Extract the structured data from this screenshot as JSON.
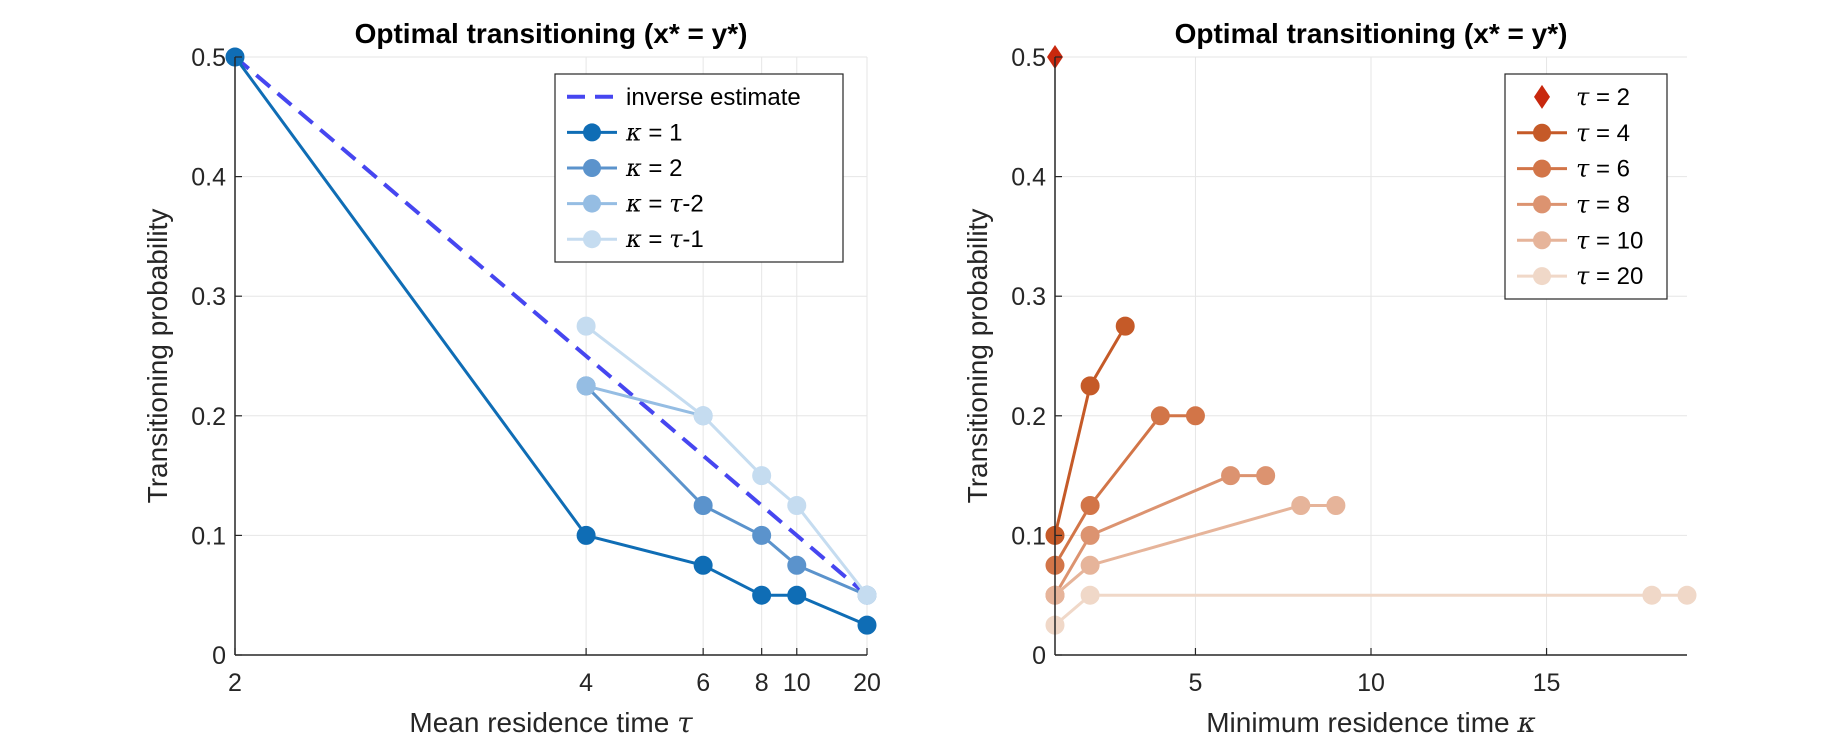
{
  "chart_data": [
    {
      "type": "line",
      "title": "Optimal transitioning (x* = y*)",
      "xlabel": "Mean residence time τ",
      "xlabel_text": "Mean residence time ",
      "xlabel_symbol": "τ",
      "ylabel": "Transitioning probability",
      "xlim": [
        2,
        20
      ],
      "ylim": [
        0,
        0.5
      ],
      "x_scale": "reciprocal",
      "xticks": [
        2,
        4,
        6,
        8,
        10,
        20
      ],
      "xtick_labels": [
        "2",
        "4",
        "6",
        "8",
        "10",
        "20"
      ],
      "yticks": [
        0,
        0.1,
        0.2,
        0.3,
        0.4,
        0.5
      ],
      "ytick_labels": [
        "0",
        "0.1",
        "0.2",
        "0.3",
        "0.4",
        "0.5"
      ],
      "grid": true,
      "legend_position": "top-right",
      "series": [
        {
          "name": "inverse estimate",
          "legend_prefix": "",
          "legend_symbol": "",
          "legend_suffix": "inverse estimate",
          "style": "dashed",
          "marker": "none",
          "color": "#4646f0",
          "x": [
            2,
            4,
            6,
            8,
            10,
            20
          ],
          "y": [
            0.5,
            0.25,
            0.1667,
            0.125,
            0.1,
            0.05
          ]
        },
        {
          "name": "κ = 1",
          "legend_prefix": "",
          "legend_symbol": "κ",
          "legend_suffix": " = 1",
          "style": "solid",
          "marker": "circle",
          "color": "#0f6db5",
          "x": [
            2,
            4,
            6,
            8,
            10,
            20
          ],
          "y": [
            0.5,
            0.1,
            0.075,
            0.05,
            0.05,
            0.025
          ]
        },
        {
          "name": "κ = 2",
          "legend_prefix": "",
          "legend_symbol": "κ",
          "legend_suffix": " = 2",
          "style": "solid",
          "marker": "circle",
          "color": "#5b93cc",
          "x": [
            4,
            6,
            8,
            10,
            20
          ],
          "y": [
            0.225,
            0.125,
            0.1,
            0.075,
            0.05
          ]
        },
        {
          "name": "κ = τ-2",
          "legend_prefix": "",
          "legend_symbol": "κ",
          "legend_suffix": " = τ-2",
          "style": "solid",
          "marker": "circle",
          "color": "#95bde3",
          "x": [
            4,
            6
          ],
          "y": [
            0.225,
            0.2
          ]
        },
        {
          "name": "κ = τ-1",
          "legend_prefix": "",
          "legend_symbol": "κ",
          "legend_suffix": " = τ-1",
          "style": "solid",
          "marker": "circle",
          "color": "#c5dcf0",
          "x": [
            4,
            6,
            8,
            10,
            20
          ],
          "y": [
            0.275,
            0.2,
            0.15,
            0.125,
            0.05
          ]
        }
      ]
    },
    {
      "type": "line",
      "title": "Optimal transitioning (x* = y*)",
      "xlabel": "Minimum residence time κ",
      "xlabel_text": "Minimum residence time ",
      "xlabel_symbol": "κ",
      "ylabel": "Transitioning probability",
      "xlim": [
        1,
        19
      ],
      "ylim": [
        0,
        0.5
      ],
      "x_scale": "linear",
      "xticks": [
        5,
        10,
        15
      ],
      "xtick_labels": [
        "5",
        "10",
        "15"
      ],
      "yticks": [
        0,
        0.1,
        0.2,
        0.3,
        0.4,
        0.5
      ],
      "ytick_labels": [
        "0",
        "0.1",
        "0.2",
        "0.3",
        "0.4",
        "0.5"
      ],
      "grid": true,
      "legend_position": "top-right",
      "series": [
        {
          "name": "τ = 2",
          "legend_symbol": "τ",
          "legend_suffix": " = 2",
          "style": "none",
          "marker": "diamond",
          "color": "#c8280e",
          "x": [
            1
          ],
          "y": [
            0.5
          ]
        },
        {
          "name": "τ = 4",
          "legend_symbol": "τ",
          "legend_suffix": " = 4",
          "style": "solid",
          "marker": "circle",
          "color": "#c55a28",
          "x": [
            1,
            2,
            3
          ],
          "y": [
            0.1,
            0.225,
            0.275
          ]
        },
        {
          "name": "τ = 6",
          "legend_symbol": "τ",
          "legend_suffix": " = 6",
          "style": "solid",
          "marker": "circle",
          "color": "#d27548",
          "x": [
            1,
            2,
            4,
            5
          ],
          "y": [
            0.075,
            0.125,
            0.2,
            0.2
          ]
        },
        {
          "name": "τ = 8",
          "legend_symbol": "τ",
          "legend_suffix": " = 8",
          "style": "solid",
          "marker": "circle",
          "color": "#dc9370",
          "x": [
            1,
            2,
            6,
            7
          ],
          "y": [
            0.05,
            0.1,
            0.15,
            0.15
          ]
        },
        {
          "name": "τ = 10",
          "legend_symbol": "τ",
          "legend_suffix": " = 10",
          "style": "solid",
          "marker": "circle",
          "color": "#e6b49a",
          "x": [
            1,
            2,
            8,
            9
          ],
          "y": [
            0.05,
            0.075,
            0.125,
            0.125
          ]
        },
        {
          "name": "τ = 20",
          "legend_symbol": "τ",
          "legend_suffix": " = 20",
          "style": "solid",
          "marker": "circle",
          "color": "#f0d8c8",
          "x": [
            1,
            2,
            18,
            19
          ],
          "y": [
            0.025,
            0.05,
            0.05,
            0.05
          ]
        }
      ]
    }
  ]
}
